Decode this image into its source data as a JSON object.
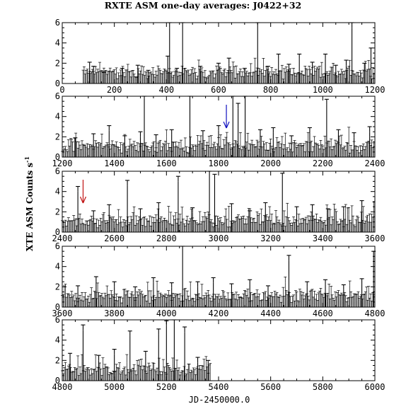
{
  "chart_data": {
    "type": "scatter",
    "title": "RXTE ASM one-day averages: J0422+32",
    "ylabel": "XTE ASM Counts s",
    "ylabel_superscript": "-1",
    "xlabel": "JD-2450000.0",
    "grid": false,
    "colors": {
      "data": "#000000",
      "arrow_panel2": "#1010c0",
      "arrow_panel3": "#c01010"
    },
    "panels": [
      {
        "xlim": [
          0,
          1200
        ],
        "ylim": [
          0,
          6
        ],
        "xticks": [
          "0",
          "200",
          "400",
          "600",
          "800",
          "1000",
          "1200"
        ],
        "yticks": [
          "0",
          "2",
          "4",
          "6"
        ],
        "data_start": 80,
        "data_end": 1200,
        "points": [
          [
            105,
            1.6
          ],
          [
            120,
            1.2
          ],
          [
            160,
            0.6
          ],
          [
            230,
            1.0
          ],
          [
            290,
            1.3
          ],
          [
            330,
            0.8
          ],
          [
            405,
            2.2
          ],
          [
            412,
            5.5
          ],
          [
            440,
            1.0
          ],
          [
            462,
            6.0
          ],
          [
            530,
            1.2
          ],
          [
            600,
            1.5
          ],
          [
            640,
            2.0
          ],
          [
            700,
            1.0
          ],
          [
            750,
            5.8
          ],
          [
            790,
            1.2
          ],
          [
            830,
            2.4
          ],
          [
            870,
            1.4
          ],
          [
            910,
            2.4
          ],
          [
            960,
            1.6
          ],
          [
            1010,
            2.4
          ],
          [
            1050,
            1.3
          ],
          [
            1090,
            1.8
          ],
          [
            1112,
            5.5
          ],
          [
            1160,
            1.5
          ],
          [
            1185,
            3.0
          ]
        ],
        "arrow": null
      },
      {
        "xlim": [
          1200,
          2400
        ],
        "ylim": [
          0,
          6
        ],
        "xticks": [
          "1200",
          "1400",
          "1600",
          "1800",
          "2000",
          "2200",
          "2400"
        ],
        "yticks": [
          "0",
          "2",
          "4",
          "6"
        ],
        "data_start": 1200,
        "data_end": 2400,
        "points": [
          [
            1250,
            1.4
          ],
          [
            1320,
            1.8
          ],
          [
            1380,
            2.6
          ],
          [
            1440,
            1.6
          ],
          [
            1500,
            2.0
          ],
          [
            1515,
            5.8
          ],
          [
            1560,
            1.7
          ],
          [
            1620,
            2.2
          ],
          [
            1690,
            6.0
          ],
          [
            1740,
            2.1
          ],
          [
            1800,
            2.6
          ],
          [
            1855,
            6.0
          ],
          [
            1875,
            4.8
          ],
          [
            1902,
            6.0
          ],
          [
            1960,
            2.2
          ],
          [
            2010,
            2.4
          ],
          [
            2080,
            1.6
          ],
          [
            2150,
            2.4
          ],
          [
            2215,
            5.2
          ],
          [
            2260,
            2.2
          ],
          [
            2320,
            1.9
          ],
          [
            2380,
            2.5
          ]
        ],
        "arrow": {
          "x": 1830,
          "color": "#1010c0"
        }
      },
      {
        "xlim": [
          2400,
          3600
        ],
        "ylim": [
          0,
          6
        ],
        "xticks": [
          "2400",
          "2600",
          "2800",
          "3000",
          "3200",
          "3400",
          "3600"
        ],
        "yticks": [
          "0",
          "2",
          "4",
          "6"
        ],
        "data_start": 2400,
        "data_end": 3600,
        "points": [
          [
            2460,
            4.0
          ],
          [
            2520,
            1.6
          ],
          [
            2580,
            2.2
          ],
          [
            2650,
            4.6
          ],
          [
            2700,
            1.8
          ],
          [
            2770,
            2.4
          ],
          [
            2845,
            5.0
          ],
          [
            2900,
            1.9
          ],
          [
            2965,
            6.0
          ],
          [
            2985,
            5.2
          ],
          [
            3050,
            2.3
          ],
          [
            3120,
            1.6
          ],
          [
            3180,
            2.4
          ],
          [
            3245,
            5.3
          ],
          [
            3300,
            2.0
          ],
          [
            3360,
            2.2
          ],
          [
            3420,
            1.8
          ],
          [
            3480,
            2.0
          ],
          [
            3550,
            2.6
          ]
        ],
        "arrow": {
          "x": 2480,
          "color": "#c01010"
        }
      },
      {
        "xlim": [
          3600,
          4800
        ],
        "ylim": [
          0,
          6
        ],
        "xticks": [
          "3600",
          "3800",
          "4000",
          "4200",
          "4400",
          "4600",
          "4800"
        ],
        "yticks": [
          "0",
          "2",
          "4",
          "6"
        ],
        "data_start": 3600,
        "data_end": 4800,
        "points": [
          [
            3660,
            1.6
          ],
          [
            3730,
            2.5
          ],
          [
            3800,
            2.0
          ],
          [
            3880,
            1.5
          ],
          [
            3950,
            2.4
          ],
          [
            4020,
            1.9
          ],
          [
            4062,
            6.0
          ],
          [
            4120,
            2.0
          ],
          [
            4180,
            2.4
          ],
          [
            4250,
            1.8
          ],
          [
            4320,
            2.2
          ],
          [
            4390,
            1.6
          ],
          [
            4470,
            4.6
          ],
          [
            4540,
            2.0
          ],
          [
            4610,
            2.2
          ],
          [
            4680,
            1.7
          ],
          [
            4750,
            2.3
          ],
          [
            4795,
            5.0
          ]
        ],
        "arrow": null
      },
      {
        "xlim": [
          4800,
          6000
        ],
        "ylim": [
          0,
          6
        ],
        "xticks": [
          "4800",
          "5000",
          "5200",
          "5400",
          "5600",
          "5800",
          "6000"
        ],
        "yticks": [
          "0",
          "2",
          "4",
          "6"
        ],
        "data_start": 4800,
        "data_end": 5370,
        "points": [
          [
            4830,
            2.2
          ],
          [
            4880,
            5.0
          ],
          [
            4940,
            2.0
          ],
          [
            5000,
            2.6
          ],
          [
            5060,
            4.4
          ],
          [
            5120,
            2.4
          ],
          [
            5170,
            4.6
          ],
          [
            5200,
            5.4
          ],
          [
            5230,
            6.0
          ],
          [
            5270,
            4.8
          ],
          [
            5320,
            1.8
          ],
          [
            5360,
            1.5
          ]
        ],
        "arrow": null
      }
    ]
  }
}
